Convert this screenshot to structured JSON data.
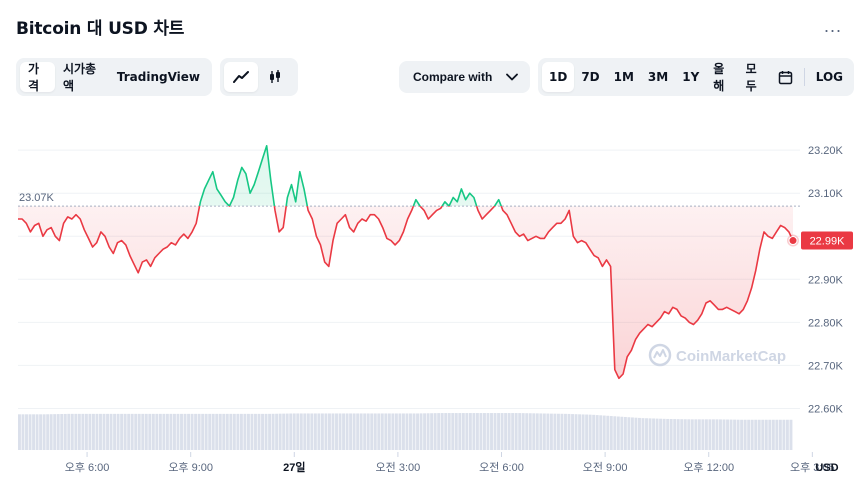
{
  "title": "Bitcoin 대 USD 차트",
  "more_label": "...",
  "view_tabs": [
    {
      "label": "가격",
      "active": true
    },
    {
      "label": "시가총액",
      "active": false
    },
    {
      "label": "TradingView",
      "active": false
    }
  ],
  "chart_type_icons": [
    "line-chart-icon",
    "candlestick-icon"
  ],
  "compare_label": "Compare with",
  "ranges": [
    {
      "label": "1D",
      "active": true
    },
    {
      "label": "7D",
      "active": false
    },
    {
      "label": "1M",
      "active": false
    },
    {
      "label": "3M",
      "active": false
    },
    {
      "label": "1Y",
      "active": false
    },
    {
      "label": "올해",
      "active": false
    },
    {
      "label": "모두",
      "active": false
    }
  ],
  "log_label": "LOG",
  "colors": {
    "up": "#16c784",
    "down": "#ea3943",
    "ref_line": "#a6b0c3",
    "grid": "#eff2f5"
  },
  "chart_data": {
    "type": "line",
    "title": "",
    "unit_label": "USD",
    "reference_value": 23070,
    "reference_label": "23.07K",
    "current_value": 22990,
    "current_label": "22.99K",
    "ylim": [
      22550,
      23270
    ],
    "y_ticks": [
      22600,
      22700,
      22800,
      22900,
      23000,
      23100,
      23200
    ],
    "y_tick_labels": [
      "22.60K",
      "22.70K",
      "22.80K",
      "22.90K",
      "23.00K",
      "23.10K",
      "23.20K"
    ],
    "x_ticks": [
      {
        "label": "오후 6:00",
        "t": 0.1,
        "bold": false
      },
      {
        "label": "오후 9:00",
        "t": 0.25,
        "bold": false
      },
      {
        "label": "27일",
        "t": 0.4,
        "bold": true
      },
      {
        "label": "오전 3:00",
        "t": 0.55,
        "bold": false
      },
      {
        "label": "오전 6:00",
        "t": 0.7,
        "bold": false
      },
      {
        "label": "오전 9:00",
        "t": 0.85,
        "bold": false
      },
      {
        "label": "오후 12:00",
        "t": 1.0,
        "bold": false
      },
      {
        "label": "오후 3:05",
        "t": 1.15,
        "bold": false
      }
    ],
    "watermark": "CoinMarketCap",
    "series": [
      {
        "values": [
          [
            0.0,
            23040
          ],
          [
            0.006,
            23040
          ],
          [
            0.012,
            23030
          ],
          [
            0.018,
            23010
          ],
          [
            0.024,
            23025
          ],
          [
            0.03,
            23030
          ],
          [
            0.036,
            23000
          ],
          [
            0.042,
            23015
          ],
          [
            0.048,
            23020
          ],
          [
            0.054,
            23000
          ],
          [
            0.06,
            22990
          ],
          [
            0.066,
            23030
          ],
          [
            0.072,
            23045
          ],
          [
            0.078,
            23040
          ],
          [
            0.084,
            23050
          ],
          [
            0.09,
            23040
          ],
          [
            0.096,
            23015
          ],
          [
            0.102,
            22995
          ],
          [
            0.108,
            22975
          ],
          [
            0.114,
            22985
          ],
          [
            0.12,
            23010
          ],
          [
            0.126,
            23000
          ],
          [
            0.132,
            22975
          ],
          [
            0.138,
            22960
          ],
          [
            0.144,
            22985
          ],
          [
            0.15,
            22990
          ],
          [
            0.156,
            22980
          ],
          [
            0.162,
            22955
          ],
          [
            0.168,
            22935
          ],
          [
            0.174,
            22915
          ],
          [
            0.18,
            22940
          ],
          [
            0.186,
            22945
          ],
          [
            0.192,
            22930
          ],
          [
            0.198,
            22950
          ],
          [
            0.204,
            22960
          ],
          [
            0.21,
            22970
          ],
          [
            0.216,
            22975
          ],
          [
            0.222,
            22985
          ],
          [
            0.228,
            22980
          ],
          [
            0.234,
            22995
          ],
          [
            0.24,
            23005
          ],
          [
            0.246,
            22995
          ],
          [
            0.252,
            23010
          ],
          [
            0.258,
            23030
          ],
          [
            0.264,
            23080
          ],
          [
            0.27,
            23110
          ],
          [
            0.276,
            23130
          ],
          [
            0.282,
            23150
          ],
          [
            0.288,
            23110
          ],
          [
            0.294,
            23095
          ],
          [
            0.3,
            23080
          ],
          [
            0.306,
            23070
          ],
          [
            0.312,
            23090
          ],
          [
            0.318,
            23130
          ],
          [
            0.324,
            23160
          ],
          [
            0.33,
            23145
          ],
          [
            0.336,
            23100
          ],
          [
            0.342,
            23120
          ],
          [
            0.348,
            23150
          ],
          [
            0.354,
            23180
          ],
          [
            0.36,
            23210
          ],
          [
            0.366,
            23130
          ],
          [
            0.372,
            23060
          ],
          [
            0.378,
            23010
          ],
          [
            0.384,
            23020
          ],
          [
            0.39,
            23090
          ],
          [
            0.396,
            23120
          ],
          [
            0.402,
            23080
          ],
          [
            0.408,
            23150
          ],
          [
            0.414,
            23110
          ],
          [
            0.42,
            23060
          ],
          [
            0.426,
            23040
          ],
          [
            0.432,
            23000
          ],
          [
            0.438,
            22980
          ],
          [
            0.444,
            22940
          ],
          [
            0.45,
            22930
          ],
          [
            0.456,
            22990
          ],
          [
            0.462,
            23030
          ],
          [
            0.468,
            23040
          ],
          [
            0.474,
            23050
          ],
          [
            0.48,
            23020
          ],
          [
            0.486,
            23010
          ],
          [
            0.492,
            23030
          ],
          [
            0.498,
            23040
          ],
          [
            0.504,
            23035
          ],
          [
            0.51,
            23050
          ],
          [
            0.516,
            23050
          ],
          [
            0.522,
            23040
          ],
          [
            0.528,
            23020
          ],
          [
            0.534,
            22995
          ],
          [
            0.54,
            22990
          ],
          [
            0.546,
            22980
          ],
          [
            0.552,
            22990
          ],
          [
            0.558,
            23010
          ],
          [
            0.564,
            23040
          ],
          [
            0.57,
            23060
          ],
          [
            0.576,
            23085
          ],
          [
            0.582,
            23070
          ],
          [
            0.588,
            23060
          ],
          [
            0.594,
            23040
          ],
          [
            0.6,
            23050
          ],
          [
            0.606,
            23060
          ],
          [
            0.612,
            23065
          ],
          [
            0.618,
            23080
          ],
          [
            0.624,
            23070
          ],
          [
            0.63,
            23090
          ],
          [
            0.636,
            23080
          ],
          [
            0.642,
            23110
          ],
          [
            0.648,
            23085
          ],
          [
            0.654,
            23100
          ],
          [
            0.66,
            23090
          ],
          [
            0.666,
            23060
          ],
          [
            0.672,
            23040
          ],
          [
            0.678,
            23050
          ],
          [
            0.684,
            23060
          ],
          [
            0.69,
            23070
          ],
          [
            0.696,
            23085
          ],
          [
            0.702,
            23060
          ],
          [
            0.708,
            23050
          ],
          [
            0.714,
            23030
          ],
          [
            0.72,
            23010
          ],
          [
            0.726,
            23000
          ],
          [
            0.732,
            23005
          ],
          [
            0.738,
            22990
          ],
          [
            0.744,
            22995
          ],
          [
            0.75,
            23000
          ],
          [
            0.756,
            22995
          ],
          [
            0.762,
            22995
          ],
          [
            0.768,
            23010
          ],
          [
            0.774,
            23020
          ],
          [
            0.78,
            23030
          ],
          [
            0.786,
            23030
          ],
          [
            0.792,
            23040
          ],
          [
            0.798,
            23060
          ],
          [
            0.804,
            23000
          ],
          [
            0.81,
            22985
          ],
          [
            0.816,
            22990
          ],
          [
            0.822,
            22985
          ],
          [
            0.828,
            22970
          ],
          [
            0.834,
            22955
          ],
          [
            0.84,
            22950
          ],
          [
            0.846,
            22930
          ],
          [
            0.852,
            22945
          ],
          [
            0.858,
            22930
          ],
          [
            0.864,
            22690
          ],
          [
            0.87,
            22670
          ],
          [
            0.876,
            22680
          ],
          [
            0.882,
            22720
          ],
          [
            0.888,
            22735
          ],
          [
            0.894,
            22760
          ],
          [
            0.9,
            22775
          ],
          [
            0.906,
            22785
          ],
          [
            0.912,
            22795
          ],
          [
            0.918,
            22790
          ],
          [
            0.924,
            22800
          ],
          [
            0.93,
            22810
          ],
          [
            0.936,
            22825
          ],
          [
            0.942,
            22820
          ],
          [
            0.948,
            22835
          ],
          [
            0.954,
            22830
          ],
          [
            0.96,
            22815
          ],
          [
            0.966,
            22810
          ],
          [
            0.972,
            22800
          ],
          [
            0.978,
            22795
          ],
          [
            0.984,
            22805
          ],
          [
            0.99,
            22820
          ],
          [
            0.996,
            22845
          ],
          [
            1.002,
            22850
          ],
          [
            1.008,
            22840
          ],
          [
            1.014,
            22830
          ],
          [
            1.02,
            22830
          ],
          [
            1.026,
            22835
          ],
          [
            1.032,
            22830
          ],
          [
            1.038,
            22825
          ],
          [
            1.044,
            22820
          ],
          [
            1.05,
            22830
          ],
          [
            1.056,
            22850
          ],
          [
            1.062,
            22880
          ],
          [
            1.068,
            22920
          ],
          [
            1.074,
            22970
          ],
          [
            1.08,
            23010
          ],
          [
            1.086,
            23000
          ],
          [
            1.092,
            22995
          ],
          [
            1.098,
            23010
          ],
          [
            1.104,
            23025
          ],
          [
            1.11,
            23020
          ],
          [
            1.116,
            23010
          ],
          [
            1.122,
            22990
          ]
        ]
      }
    ],
    "volume": {
      "values_relative": [
        0.85,
        0.85,
        0.86,
        0.86,
        0.86,
        0.86,
        0.86,
        0.86,
        0.86,
        0.86,
        0.86,
        0.87,
        0.87,
        0.87,
        0.87,
        0.87,
        0.87,
        0.88,
        0.88,
        0.88,
        0.88,
        0.87,
        0.86,
        0.84,
        0.8,
        0.76,
        0.74,
        0.73,
        0.73,
        0.72,
        0.72,
        0.72
      ]
    }
  }
}
